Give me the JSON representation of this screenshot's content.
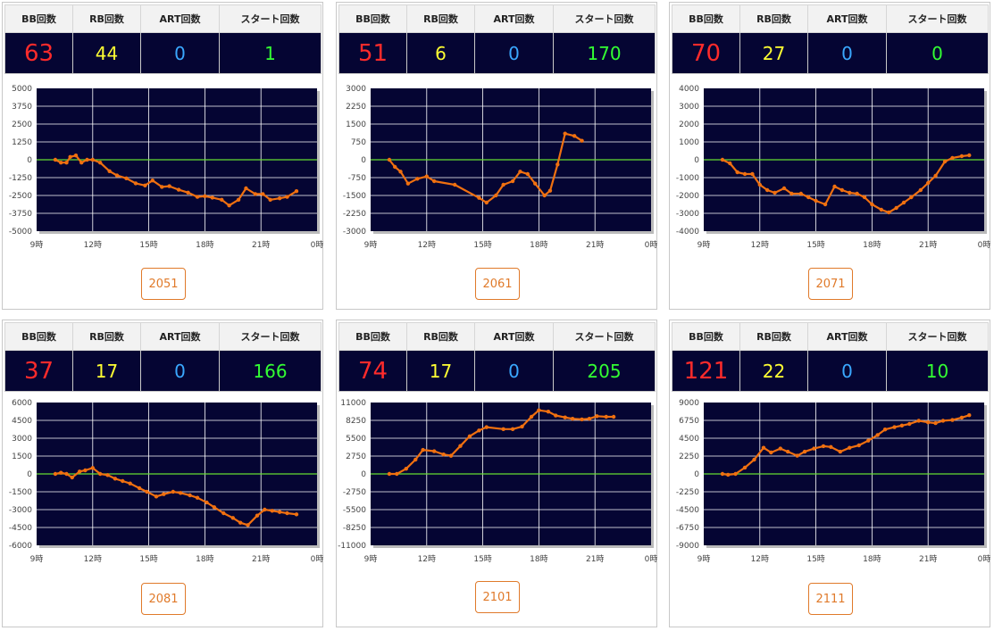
{
  "headers": {
    "bb": "BB回数",
    "rb": "RB回数",
    "art": "ART回数",
    "start": "スタート回数"
  },
  "colors": {
    "plot_bg": "#050533",
    "line": "#f07010",
    "zero": "#66dd33",
    "grid": "#ffffff",
    "bb": "#ff2b2b",
    "rb": "#ffff33",
    "art": "#3aa8ff",
    "start": "#33ff33"
  },
  "panels": [
    {
      "bb": "63",
      "rb": "44",
      "art": "0",
      "start": "1",
      "machine": "2051"
    },
    {
      "bb": "51",
      "rb": "6",
      "art": "0",
      "start": "170",
      "machine": "2061"
    },
    {
      "bb": "70",
      "rb": "27",
      "art": "0",
      "start": "0",
      "machine": "2071"
    },
    {
      "bb": "37",
      "rb": "17",
      "art": "0",
      "start": "166",
      "machine": "2081"
    },
    {
      "bb": "74",
      "rb": "17",
      "art": "0",
      "start": "205",
      "machine": "2101"
    },
    {
      "bb": "121",
      "rb": "22",
      "art": "0",
      "start": "10",
      "machine": "2111"
    }
  ],
  "chart_data": [
    {
      "type": "line",
      "x_ticks": [
        "9時",
        "12時",
        "15時",
        "18時",
        "21時",
        "0時"
      ],
      "xlim": [
        9,
        24
      ],
      "y_ticks": [
        5000,
        3750,
        2500,
        1250,
        0,
        -1250,
        -2500,
        -3750,
        -5000
      ],
      "ylim": [
        -5000,
        5000
      ],
      "x": [
        10.0,
        10.3,
        10.6,
        10.8,
        11.1,
        11.4,
        11.7,
        12.0,
        12.4,
        12.9,
        13.3,
        13.8,
        14.3,
        14.8,
        15.2,
        15.7,
        16.1,
        16.6,
        17.1,
        17.6,
        18.0,
        18.4,
        18.9,
        19.3,
        19.8,
        20.2,
        20.7,
        21.1,
        21.5,
        22.0,
        22.4,
        22.9
      ],
      "y": [
        0,
        -200,
        -200,
        200,
        300,
        -200,
        0,
        0,
        -200,
        -800,
        -1100,
        -1300,
        -1650,
        -1800,
        -1450,
        -1900,
        -1850,
        -2100,
        -2300,
        -2600,
        -2550,
        -2650,
        -2800,
        -3200,
        -2800,
        -2000,
        -2400,
        -2400,
        -2800,
        -2700,
        -2600,
        -2200
      ]
    },
    {
      "type": "line",
      "x_ticks": [
        "9時",
        "12時",
        "15時",
        "18時",
        "21時",
        "0時"
      ],
      "xlim": [
        9,
        24
      ],
      "y_ticks": [
        3000,
        2250,
        1500,
        750,
        0,
        -750,
        -1500,
        -2250,
        -3000
      ],
      "ylim": [
        -3000,
        3000
      ],
      "x": [
        10.0,
        10.3,
        10.6,
        11.0,
        11.5,
        12.0,
        12.4,
        13.5,
        14.8,
        15.2,
        15.7,
        16.1,
        16.6,
        17.0,
        17.4,
        17.8,
        18.3,
        18.6,
        19.0,
        19.4,
        19.9,
        20.3
      ],
      "y": [
        0,
        -300,
        -500,
        -1000,
        -800,
        -700,
        -900,
        -1050,
        -1600,
        -1800,
        -1500,
        -1050,
        -900,
        -500,
        -600,
        -1000,
        -1500,
        -1300,
        -200,
        1100,
        1000,
        800
      ]
    },
    {
      "type": "line",
      "x_ticks": [
        "9時",
        "12時",
        "15時",
        "18時",
        "21時",
        "0時"
      ],
      "xlim": [
        9,
        24
      ],
      "y_ticks": [
        4000,
        3000,
        2000,
        1000,
        0,
        -1000,
        -2000,
        -3000,
        -4000
      ],
      "ylim": [
        -4000,
        4000
      ],
      "x": [
        10.0,
        10.4,
        10.8,
        11.2,
        11.6,
        12.0,
        12.4,
        12.8,
        13.3,
        13.7,
        14.2,
        14.6,
        15.0,
        15.5,
        16.0,
        16.4,
        16.8,
        17.2,
        17.6,
        18.0,
        18.5,
        18.9,
        19.3,
        19.7,
        20.1,
        20.6,
        21.0,
        21.4,
        21.9,
        22.3,
        22.8,
        23.2
      ],
      "y": [
        0,
        -200,
        -700,
        -800,
        -800,
        -1400,
        -1700,
        -1850,
        -1600,
        -1900,
        -1900,
        -2100,
        -2300,
        -2500,
        -1500,
        -1700,
        -1850,
        -1900,
        -2100,
        -2500,
        -2800,
        -2950,
        -2700,
        -2400,
        -2100,
        -1700,
        -1300,
        -900,
        -100,
        100,
        200,
        250
      ]
    },
    {
      "type": "line",
      "x_ticks": [
        "9時",
        "12時",
        "15時",
        "18時",
        "21時",
        "0時"
      ],
      "xlim": [
        9,
        24
      ],
      "y_ticks": [
        6000,
        4500,
        3000,
        1500,
        0,
        -1500,
        -3000,
        -4500,
        -6000
      ],
      "ylim": [
        -6000,
        6000
      ],
      "x": [
        10.0,
        10.3,
        10.6,
        10.9,
        11.3,
        11.6,
        12.0,
        12.4,
        12.8,
        13.2,
        13.6,
        14.0,
        14.5,
        14.9,
        15.4,
        15.8,
        16.3,
        16.7,
        17.2,
        17.6,
        18.1,
        18.5,
        19.0,
        19.5,
        19.9,
        20.3,
        20.8,
        21.2,
        21.6,
        22.0,
        22.4,
        22.9
      ],
      "y": [
        0,
        100,
        0,
        -300,
        200,
        300,
        500,
        0,
        -100,
        -400,
        -600,
        -800,
        -1200,
        -1500,
        -1900,
        -1700,
        -1500,
        -1600,
        -1800,
        -2000,
        -2400,
        -2800,
        -3300,
        -3700,
        -4100,
        -4300,
        -3500,
        -3000,
        -3100,
        -3200,
        -3300,
        -3400
      ]
    },
    {
      "type": "line",
      "x_ticks": [
        "9時",
        "12時",
        "15時",
        "18時",
        "21時",
        "0時"
      ],
      "xlim": [
        9,
        24
      ],
      "y_ticks": [
        11000,
        8250,
        5500,
        2750,
        0,
        -2750,
        -5500,
        -8250,
        -11000
      ],
      "ylim": [
        -11000,
        11000
      ],
      "x": [
        10.0,
        10.4,
        10.9,
        11.4,
        11.8,
        12.4,
        12.9,
        13.3,
        13.8,
        14.3,
        14.8,
        15.2,
        16.1,
        16.6,
        17.1,
        17.6,
        18.0,
        18.5,
        18.9,
        19.4,
        19.8,
        20.3,
        20.7,
        21.1,
        21.6,
        22.0
      ],
      "y": [
        0,
        0,
        800,
        2200,
        3700,
        3500,
        3000,
        2800,
        4300,
        5800,
        6700,
        7200,
        6900,
        6900,
        7300,
        8800,
        9800,
        9600,
        9000,
        8700,
        8500,
        8400,
        8500,
        8900,
        8800,
        8800
      ]
    },
    {
      "type": "line",
      "x_ticks": [
        "9時",
        "12時",
        "15時",
        "18時",
        "21時",
        "0時"
      ],
      "xlim": [
        9,
        24
      ],
      "y_ticks": [
        9000,
        6750,
        4500,
        2250,
        0,
        -2250,
        -4500,
        -6750,
        -9000
      ],
      "ylim": [
        -9000,
        9000
      ],
      "x": [
        10.0,
        10.3,
        10.7,
        11.2,
        11.7,
        12.2,
        12.6,
        13.1,
        13.5,
        14.0,
        14.4,
        14.9,
        15.4,
        15.8,
        16.3,
        16.8,
        17.3,
        17.8,
        18.3,
        18.7,
        19.2,
        19.6,
        20.0,
        20.5,
        21.0,
        21.4,
        21.8,
        22.3,
        22.8,
        23.2
      ],
      "y": [
        0,
        -100,
        0,
        800,
        1800,
        3300,
        2700,
        3200,
        2800,
        2300,
        2800,
        3200,
        3500,
        3400,
        2800,
        3300,
        3600,
        4200,
        4900,
        5600,
        5900,
        6100,
        6300,
        6700,
        6500,
        6400,
        6700,
        6800,
        7100,
        7400
      ]
    }
  ]
}
